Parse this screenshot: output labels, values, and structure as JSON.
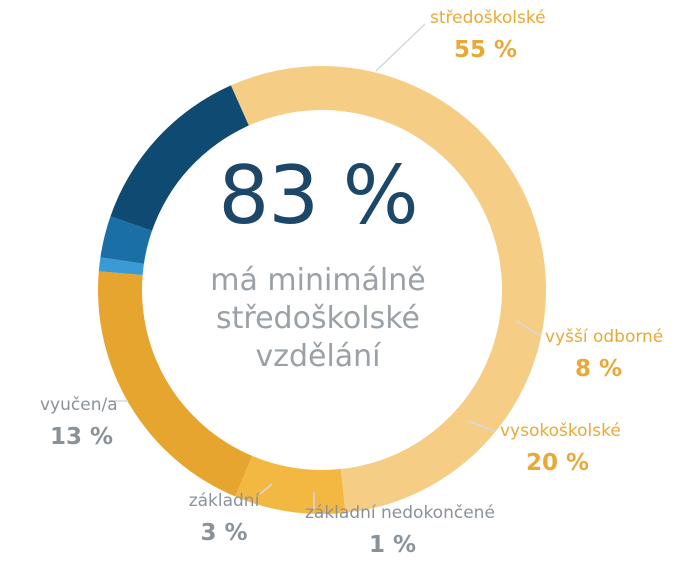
{
  "chart_data": {
    "type": "pie",
    "style": "donut",
    "center_value": "83 %",
    "center_caption": [
      "má minimálně",
      "středoškolské",
      "vzdělání"
    ],
    "start_slice": "středoškolské",
    "direction": "clockwise",
    "slices": [
      {
        "name": "středoškolské",
        "value": 55,
        "percent_label": "55 %",
        "color": "#f5cd85",
        "label_color": "#e9a936",
        "percent_color": "#e9a936"
      },
      {
        "name": "vyšší odborné",
        "value": 8,
        "percent_label": "8 %",
        "color": "#f3b842",
        "label_color": "#e9a936",
        "percent_color": "#e9a936"
      },
      {
        "name": "vysokoškolské",
        "value": 20,
        "percent_label": "20 %",
        "color": "#e6a52e",
        "label_color": "#e9a936",
        "percent_color": "#e9a936"
      },
      {
        "name": "základní nedokončené",
        "value": 1,
        "percent_label": "1 %",
        "color": "#3a9ad6",
        "label_color": "#8a9299",
        "percent_color": "#8a9299"
      },
      {
        "name": "základní",
        "value": 3,
        "percent_label": "3 %",
        "color": "#1a6fa7",
        "label_color": "#8a9299",
        "percent_color": "#8a9299"
      },
      {
        "name": "vyučen/a",
        "value": 13,
        "percent_label": "13 %",
        "color": "#0e4a72",
        "label_color": "#8a9299",
        "percent_color": "#8a9299"
      }
    ]
  }
}
